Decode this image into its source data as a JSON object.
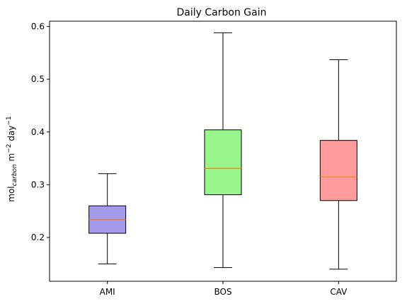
{
  "chart_data": {
    "type": "box",
    "title": "Daily Carbon Gain",
    "ylabel": {
      "base": "mol",
      "subscript": "carbon",
      "mid": " m",
      "sup1": "−2",
      "mid2": " day",
      "sup2": "−1"
    },
    "xlabel": "",
    "ylim": [
      0.117,
      0.61
    ],
    "yticks": [
      0.2,
      0.3,
      0.4,
      0.5,
      0.6
    ],
    "ytick_labels": [
      "0.2",
      "0.3",
      "0.4",
      "0.5",
      "0.6"
    ],
    "categories": [
      "AMI",
      "BOS",
      "CAV"
    ],
    "boxes": [
      {
        "label": "AMI",
        "whisker_low": 0.15,
        "q1": 0.208,
        "median": 0.234,
        "q3": 0.26,
        "whisker_high": 0.321,
        "color": "#a49bea"
      },
      {
        "label": "BOS",
        "whisker_low": 0.143,
        "q1": 0.281,
        "median": 0.331,
        "q3": 0.404,
        "whisker_high": 0.588,
        "color": "#98f58e"
      },
      {
        "label": "CAV",
        "whisker_low": 0.14,
        "q1": 0.27,
        "median": 0.315,
        "q3": 0.384,
        "whisker_high": 0.537,
        "color": "#fe9b9c"
      }
    ],
    "median_color": "#ff7f0e",
    "grid": false
  }
}
